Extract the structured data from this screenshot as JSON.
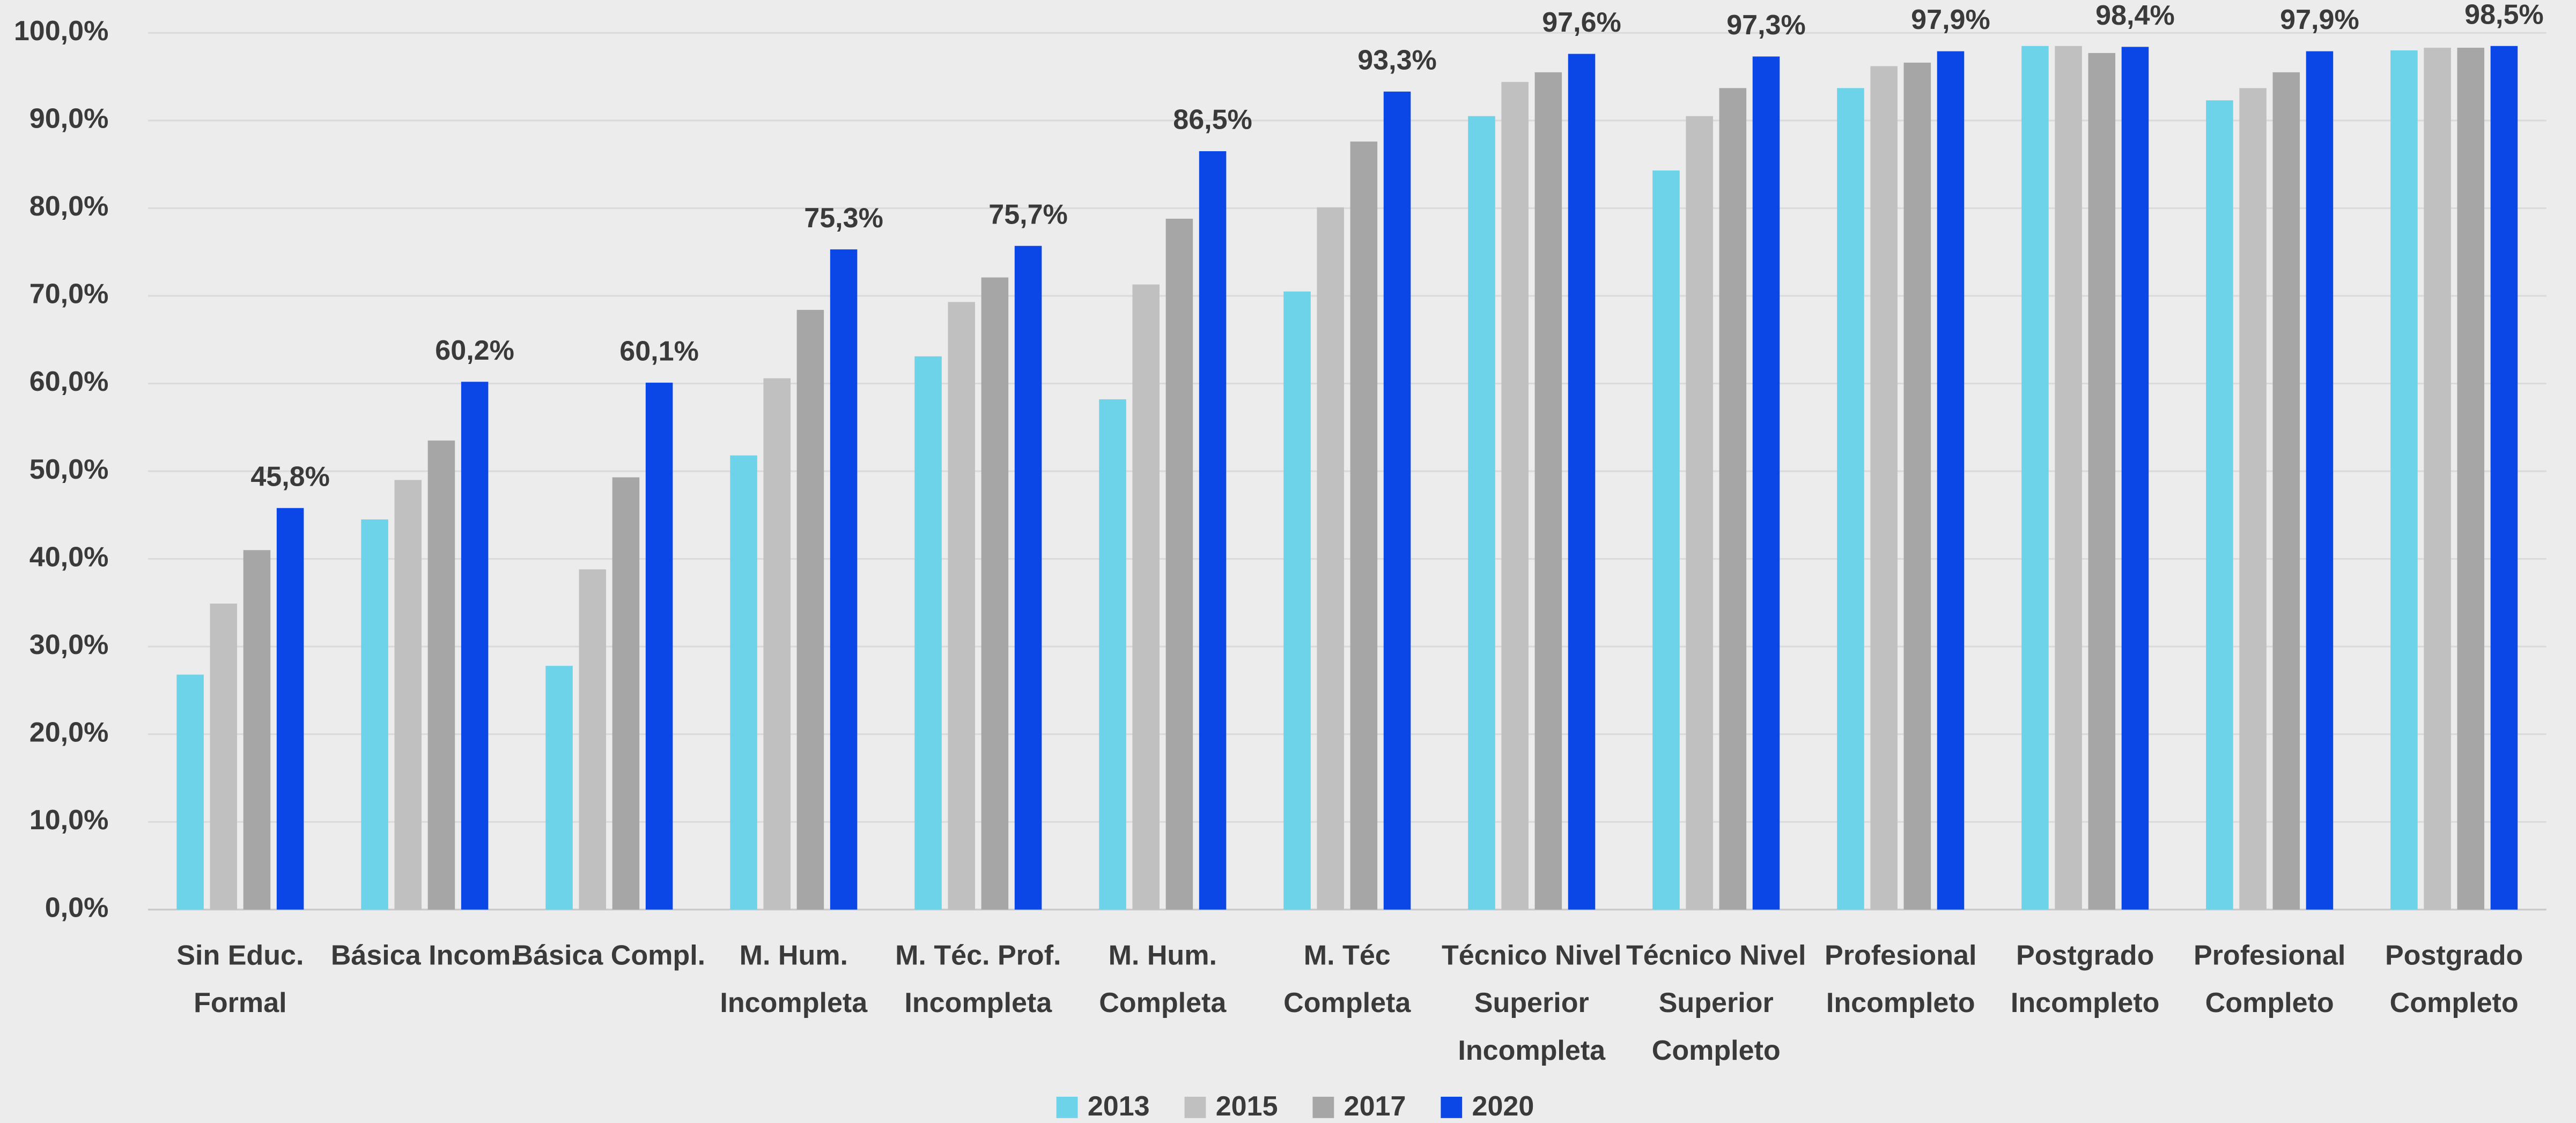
{
  "chart_data": {
    "type": "bar",
    "categories": [
      [
        "Sin Educ.",
        "Formal"
      ],
      [
        "Básica Incom."
      ],
      [
        "Básica Compl."
      ],
      [
        "M. Hum.",
        "Incompleta"
      ],
      [
        "M. Téc. Prof.",
        "Incompleta"
      ],
      [
        "M. Hum.",
        "Completa"
      ],
      [
        "M. Téc",
        "Completa"
      ],
      [
        "Técnico Nivel",
        "Superior",
        "Incompleta"
      ],
      [
        "Técnico Nivel",
        "Superior",
        "Completo"
      ],
      [
        "Profesional",
        "Incompleto"
      ],
      [
        "Postgrado",
        "Incompleto"
      ],
      [
        "Profesional",
        "Completo"
      ],
      [
        "Postgrado",
        "Completo"
      ]
    ],
    "series": [
      {
        "name": "2013",
        "color": "#6dd3e8",
        "values": [
          26.8,
          44.5,
          27.8,
          51.8,
          63.1,
          58.2,
          70.5,
          90.5,
          84.3,
          93.7,
          98.5,
          92.3,
          98.0
        ]
      },
      {
        "name": "2015",
        "color": "#c0c0c0",
        "values": [
          34.9,
          49.0,
          38.8,
          60.6,
          69.3,
          71.3,
          80.1,
          94.4,
          90.5,
          96.2,
          98.5,
          93.7,
          98.3
        ]
      },
      {
        "name": "2017",
        "color": "#a6a6a6",
        "values": [
          41.0,
          53.5,
          49.3,
          68.4,
          72.1,
          78.8,
          87.6,
          95.5,
          93.7,
          96.6,
          97.7,
          95.5,
          98.3
        ]
      },
      {
        "name": "2020",
        "color": "#0a47e6",
        "values": [
          45.8,
          60.2,
          60.1,
          75.3,
          75.7,
          86.5,
          93.3,
          97.6,
          97.3,
          97.9,
          98.4,
          97.9,
          98.5
        ],
        "value_labels": [
          "45,8%",
          "60,2%",
          "60,1%",
          "75,3%",
          "75,7%",
          "86,5%",
          "93,3%",
          "97,6%",
          "97,3%",
          "97,9%",
          "98,4%",
          "97,9%",
          "98,5%"
        ]
      }
    ],
    "ylim": [
      0,
      100
    ],
    "yticks": [
      {
        "value": 0,
        "label": "0,0%"
      },
      {
        "value": 10,
        "label": "10,0%"
      },
      {
        "value": 20,
        "label": "20,0%"
      },
      {
        "value": 30,
        "label": "30,0%"
      },
      {
        "value": 40,
        "label": "40,0%"
      },
      {
        "value": 50,
        "label": "50,0%"
      },
      {
        "value": 60,
        "label": "60,0%"
      },
      {
        "value": 70,
        "label": "70,0%"
      },
      {
        "value": 80,
        "label": "80,0%"
      },
      {
        "value": 90,
        "label": "90,0%"
      },
      {
        "value": 100,
        "label": "100,0%"
      }
    ],
    "grid": true,
    "legend": "bottom"
  }
}
